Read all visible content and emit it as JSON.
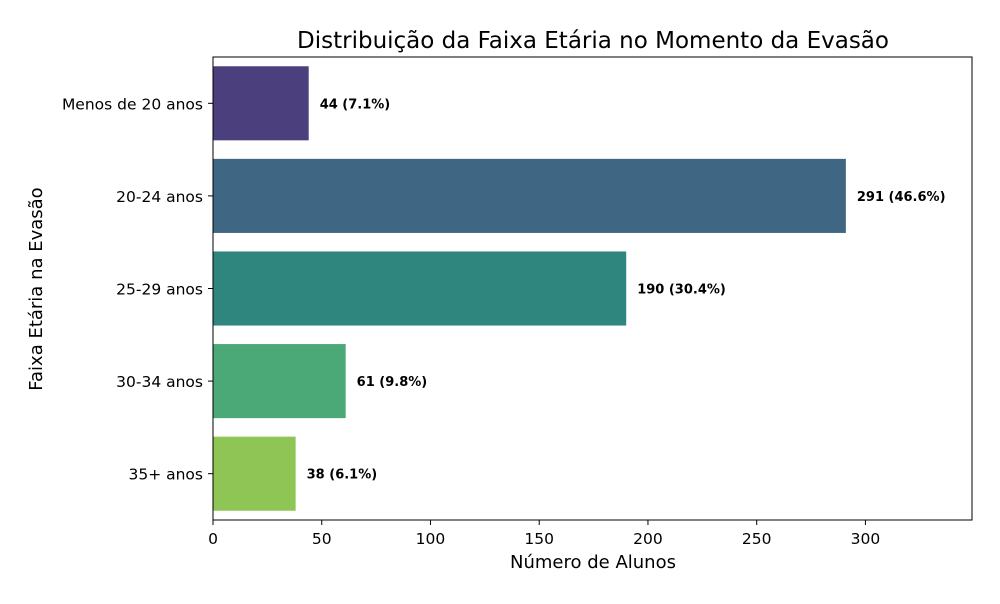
{
  "chart_data": {
    "type": "bar",
    "orientation": "horizontal",
    "title": "Distribuição da Faixa Etária no Momento da Evasão",
    "xlabel": "Número de Alunos",
    "ylabel": "Faixa Etária na Evasão",
    "categories": [
      "Menos de 20 anos",
      "20-24 anos",
      "25-29 anos",
      "30-34 anos",
      "35+ anos"
    ],
    "values": [
      44,
      291,
      190,
      61,
      38
    ],
    "data_labels": [
      "44 (7.1%)",
      "291 (46.6%)",
      "190 (30.4%)",
      "61 (9.8%)",
      "38 (6.1%)"
    ],
    "colors": [
      "#4b3f7e",
      "#3f6682",
      "#2e867f",
      "#4aa977",
      "#8fc554"
    ],
    "xlim": [
      0,
      349
    ],
    "xticks": [
      0,
      50,
      100,
      150,
      200,
      250,
      300
    ],
    "grid": false,
    "legend": "none"
  }
}
